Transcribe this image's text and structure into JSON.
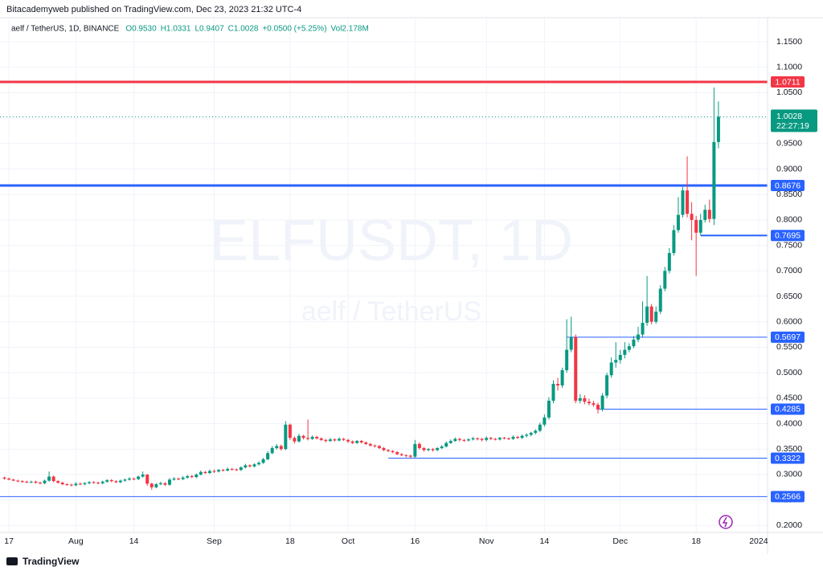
{
  "publisher": "Bitacademyweb published on TradingView.com, Dec 23, 2023 21:32 UTC-4",
  "footer": "TradingView",
  "chart_data": {
    "type": "candlestick",
    "symbol": "aelf / TetherUS, 1D, BINANCE",
    "legend_items": [
      "O0.9530",
      "H1.0331",
      "L0.9407",
      "C1.0028",
      "+0.0500 (+5.25%)",
      "Vol2.178M"
    ],
    "watermark": "ELFUSDT, 1D",
    "watermark_subtitle": "aelf / TetherUS",
    "up_color": "#089981",
    "down_color": "#f23645",
    "grid": true,
    "x": [
      "2023-07-16",
      "2023-07-17",
      "2023-07-18",
      "2023-07-19",
      "2023-07-20",
      "2023-07-21",
      "2023-07-22",
      "2023-07-23",
      "2023-07-24",
      "2023-07-25",
      "2023-07-26",
      "2023-07-27",
      "2023-07-28",
      "2023-07-29",
      "2023-07-30",
      "2023-07-31",
      "2023-08-01",
      "2023-08-02",
      "2023-08-03",
      "2023-08-04",
      "2023-08-05",
      "2023-08-06",
      "2023-08-07",
      "2023-08-08",
      "2023-08-09",
      "2023-08-10",
      "2023-08-11",
      "2023-08-12",
      "2023-08-13",
      "2023-08-14",
      "2023-08-15",
      "2023-08-16",
      "2023-08-17",
      "2023-08-18",
      "2023-08-19",
      "2023-08-20",
      "2023-08-21",
      "2023-08-22",
      "2023-08-23",
      "2023-08-24",
      "2023-08-25",
      "2023-08-26",
      "2023-08-27",
      "2023-08-28",
      "2023-08-29",
      "2023-08-30",
      "2023-08-31",
      "2023-09-01",
      "2023-09-02",
      "2023-09-03",
      "2023-09-04",
      "2023-09-05",
      "2023-09-06",
      "2023-09-07",
      "2023-09-08",
      "2023-09-09",
      "2023-09-10",
      "2023-09-11",
      "2023-09-12",
      "2023-09-13",
      "2023-09-14",
      "2023-09-15",
      "2023-09-16",
      "2023-09-17",
      "2023-09-18",
      "2023-09-19",
      "2023-09-20",
      "2023-09-21",
      "2023-09-22",
      "2023-09-23",
      "2023-09-24",
      "2023-09-25",
      "2023-09-26",
      "2023-09-27",
      "2023-09-28",
      "2023-09-29",
      "2023-09-30",
      "2023-10-01",
      "2023-10-02",
      "2023-10-03",
      "2023-10-04",
      "2023-10-05",
      "2023-10-06",
      "2023-10-07",
      "2023-10-08",
      "2023-10-09",
      "2023-10-10",
      "2023-10-11",
      "2023-10-12",
      "2023-10-13",
      "2023-10-14",
      "2023-10-15",
      "2023-10-16",
      "2023-10-17",
      "2023-10-18",
      "2023-10-19",
      "2023-10-20",
      "2023-10-21",
      "2023-10-22",
      "2023-10-23",
      "2023-10-24",
      "2023-10-25",
      "2023-10-26",
      "2023-10-27",
      "2023-10-28",
      "2023-10-29",
      "2023-10-30",
      "2023-10-31",
      "2023-11-01",
      "2023-11-02",
      "2023-11-03",
      "2023-11-04",
      "2023-11-05",
      "2023-11-06",
      "2023-11-07",
      "2023-11-08",
      "2023-11-09",
      "2023-11-10",
      "2023-11-11",
      "2023-11-12",
      "2023-11-13",
      "2023-11-14",
      "2023-11-15",
      "2023-11-16",
      "2023-11-17",
      "2023-11-18",
      "2023-11-19",
      "2023-11-20",
      "2023-11-21",
      "2023-11-22",
      "2023-11-23",
      "2023-11-24",
      "2023-11-25",
      "2023-11-26",
      "2023-11-27",
      "2023-11-28",
      "2023-11-29",
      "2023-11-30",
      "2023-12-01",
      "2023-12-02",
      "2023-12-03",
      "2023-12-04",
      "2023-12-05",
      "2023-12-06",
      "2023-12-07",
      "2023-12-08",
      "2023-12-09",
      "2023-12-10",
      "2023-12-11",
      "2023-12-12",
      "2023-12-13",
      "2023-12-14",
      "2023-12-15",
      "2023-12-16",
      "2023-12-17",
      "2023-12-18",
      "2023-12-19",
      "2023-12-20",
      "2023-12-21",
      "2023-12-22",
      "2023-12-23"
    ],
    "open": [
      0.294,
      0.292,
      0.29,
      0.288,
      0.287,
      0.286,
      0.285,
      0.286,
      0.284,
      0.283,
      0.288,
      0.296,
      0.287,
      0.284,
      0.281,
      0.28,
      0.279,
      0.282,
      0.281,
      0.283,
      0.285,
      0.284,
      0.283,
      0.286,
      0.289,
      0.287,
      0.285,
      0.288,
      0.29,
      0.292,
      0.291,
      0.296,
      0.3,
      0.282,
      0.275,
      0.281,
      0.283,
      0.28,
      0.29,
      0.292,
      0.291,
      0.294,
      0.297,
      0.295,
      0.3,
      0.305,
      0.303,
      0.307,
      0.306,
      0.309,
      0.308,
      0.311,
      0.31,
      0.309,
      0.314,
      0.318,
      0.316,
      0.32,
      0.323,
      0.33,
      0.342,
      0.352,
      0.356,
      0.35,
      0.398,
      0.372,
      0.365,
      0.376,
      0.372,
      0.37,
      0.374,
      0.371,
      0.368,
      0.366,
      0.369,
      0.367,
      0.37,
      0.368,
      0.365,
      0.362,
      0.366,
      0.363,
      0.36,
      0.357,
      0.356,
      0.352,
      0.348,
      0.346,
      0.344,
      0.34,
      0.338,
      0.337,
      0.335,
      0.36,
      0.352,
      0.348,
      0.35,
      0.348,
      0.352,
      0.355,
      0.362,
      0.366,
      0.37,
      0.368,
      0.367,
      0.369,
      0.371,
      0.37,
      0.368,
      0.372,
      0.37,
      0.369,
      0.372,
      0.371,
      0.37,
      0.374,
      0.372,
      0.376,
      0.378,
      0.382,
      0.386,
      0.398,
      0.412,
      0.445,
      0.478,
      0.475,
      0.505,
      0.545,
      0.57,
      0.445,
      0.45,
      0.443,
      0.44,
      0.437,
      0.428,
      0.455,
      0.495,
      0.52,
      0.525,
      0.535,
      0.545,
      0.552,
      0.565,
      0.575,
      0.598,
      0.63,
      0.6,
      0.62,
      0.665,
      0.7,
      0.735,
      0.78,
      0.81,
      0.858,
      0.812,
      0.8,
      0.775,
      0.8,
      0.82,
      0.802,
      0.953
    ],
    "high": [
      0.296,
      0.294,
      0.292,
      0.29,
      0.289,
      0.288,
      0.288,
      0.288,
      0.286,
      0.29,
      0.306,
      0.298,
      0.289,
      0.286,
      0.283,
      0.282,
      0.285,
      0.284,
      0.285,
      0.287,
      0.287,
      0.286,
      0.288,
      0.291,
      0.291,
      0.289,
      0.29,
      0.292,
      0.295,
      0.294,
      0.298,
      0.306,
      0.301,
      0.284,
      0.283,
      0.286,
      0.285,
      0.293,
      0.295,
      0.294,
      0.297,
      0.299,
      0.299,
      0.302,
      0.308,
      0.307,
      0.31,
      0.31,
      0.311,
      0.311,
      0.314,
      0.313,
      0.312,
      0.316,
      0.321,
      0.32,
      0.322,
      0.326,
      0.333,
      0.346,
      0.356,
      0.36,
      0.359,
      0.405,
      0.4,
      0.375,
      0.38,
      0.378,
      0.408,
      0.377,
      0.376,
      0.373,
      0.37,
      0.372,
      0.371,
      0.373,
      0.372,
      0.37,
      0.367,
      0.368,
      0.368,
      0.365,
      0.362,
      0.359,
      0.358,
      0.354,
      0.35,
      0.348,
      0.346,
      0.342,
      0.34,
      0.339,
      0.368,
      0.363,
      0.354,
      0.352,
      0.352,
      0.354,
      0.358,
      0.365,
      0.369,
      0.373,
      0.372,
      0.37,
      0.371,
      0.374,
      0.373,
      0.372,
      0.375,
      0.374,
      0.372,
      0.374,
      0.374,
      0.373,
      0.377,
      0.376,
      0.379,
      0.381,
      0.384,
      0.389,
      0.402,
      0.418,
      0.452,
      0.485,
      0.49,
      0.51,
      0.605,
      0.61,
      0.575,
      0.458,
      0.456,
      0.449,
      0.445,
      0.441,
      0.46,
      0.5,
      0.53,
      0.56,
      0.545,
      0.56,
      0.558,
      0.572,
      0.59,
      0.64,
      0.69,
      0.635,
      0.63,
      0.672,
      0.708,
      0.745,
      0.79,
      0.845,
      0.865,
      0.925,
      0.835,
      0.808,
      0.812,
      0.83,
      0.84,
      1.06,
      1.0331
    ],
    "low": [
      0.29,
      0.289,
      0.287,
      0.285,
      0.284,
      0.283,
      0.283,
      0.282,
      0.281,
      0.281,
      0.286,
      0.285,
      0.282,
      0.279,
      0.278,
      0.277,
      0.277,
      0.279,
      0.279,
      0.281,
      0.282,
      0.281,
      0.281,
      0.284,
      0.285,
      0.283,
      0.283,
      0.286,
      0.288,
      0.289,
      0.289,
      0.294,
      0.278,
      0.27,
      0.273,
      0.279,
      0.278,
      0.278,
      0.288,
      0.289,
      0.289,
      0.292,
      0.293,
      0.293,
      0.298,
      0.301,
      0.301,
      0.303,
      0.304,
      0.306,
      0.306,
      0.308,
      0.307,
      0.307,
      0.312,
      0.314,
      0.314,
      0.318,
      0.321,
      0.328,
      0.34,
      0.349,
      0.347,
      0.348,
      0.368,
      0.361,
      0.363,
      0.369,
      0.367,
      0.368,
      0.369,
      0.366,
      0.363,
      0.364,
      0.365,
      0.365,
      0.366,
      0.362,
      0.36,
      0.36,
      0.361,
      0.358,
      0.355,
      0.353,
      0.35,
      0.346,
      0.344,
      0.342,
      0.338,
      0.336,
      0.334,
      0.332,
      0.333,
      0.349,
      0.345,
      0.346,
      0.345,
      0.346,
      0.35,
      0.353,
      0.36,
      0.364,
      0.365,
      0.364,
      0.365,
      0.367,
      0.367,
      0.365,
      0.365,
      0.368,
      0.367,
      0.367,
      0.369,
      0.368,
      0.368,
      0.37,
      0.37,
      0.373,
      0.375,
      0.379,
      0.383,
      0.394,
      0.408,
      0.44,
      0.465,
      0.47,
      0.5,
      0.54,
      0.44,
      0.44,
      0.438,
      0.436,
      0.433,
      0.42,
      0.424,
      0.45,
      0.49,
      0.51,
      0.518,
      0.528,
      0.54,
      0.548,
      0.56,
      0.57,
      0.592,
      0.595,
      0.596,
      0.615,
      0.66,
      0.695,
      0.73,
      0.775,
      0.805,
      0.805,
      0.76,
      0.69,
      0.77,
      0.795,
      0.795,
      0.79,
      0.9407
    ],
    "close": [
      0.292,
      0.29,
      0.288,
      0.287,
      0.286,
      0.285,
      0.286,
      0.284,
      0.283,
      0.288,
      0.296,
      0.287,
      0.284,
      0.281,
      0.28,
      0.279,
      0.282,
      0.281,
      0.283,
      0.285,
      0.284,
      0.283,
      0.286,
      0.289,
      0.287,
      0.285,
      0.288,
      0.29,
      0.292,
      0.291,
      0.296,
      0.3,
      0.282,
      0.275,
      0.281,
      0.283,
      0.28,
      0.29,
      0.292,
      0.291,
      0.294,
      0.297,
      0.295,
      0.3,
      0.305,
      0.303,
      0.307,
      0.306,
      0.309,
      0.308,
      0.311,
      0.31,
      0.309,
      0.314,
      0.318,
      0.316,
      0.32,
      0.323,
      0.33,
      0.342,
      0.352,
      0.356,
      0.35,
      0.398,
      0.372,
      0.365,
      0.376,
      0.372,
      0.37,
      0.374,
      0.371,
      0.368,
      0.366,
      0.369,
      0.367,
      0.37,
      0.368,
      0.365,
      0.362,
      0.366,
      0.363,
      0.36,
      0.357,
      0.356,
      0.352,
      0.348,
      0.346,
      0.344,
      0.34,
      0.338,
      0.337,
      0.335,
      0.36,
      0.352,
      0.348,
      0.35,
      0.348,
      0.352,
      0.355,
      0.362,
      0.366,
      0.37,
      0.368,
      0.367,
      0.369,
      0.371,
      0.37,
      0.368,
      0.372,
      0.37,
      0.369,
      0.372,
      0.371,
      0.37,
      0.374,
      0.372,
      0.376,
      0.378,
      0.382,
      0.386,
      0.398,
      0.412,
      0.445,
      0.478,
      0.475,
      0.505,
      0.545,
      0.57,
      0.445,
      0.45,
      0.443,
      0.44,
      0.437,
      0.428,
      0.455,
      0.495,
      0.52,
      0.525,
      0.535,
      0.545,
      0.552,
      0.565,
      0.575,
      0.598,
      0.63,
      0.6,
      0.62,
      0.665,
      0.7,
      0.735,
      0.78,
      0.81,
      0.858,
      0.812,
      0.8,
      0.775,
      0.8,
      0.82,
      0.802,
      0.953,
      1.0028
    ],
    "last_price": 1.0028,
    "countdown": "22:27:19",
    "levels": [
      {
        "value": 1.0711,
        "color": "#f23645",
        "width": 3
      },
      {
        "value": 0.8676,
        "color": "#2962ff",
        "width": 3
      },
      {
        "value": 0.7695,
        "color": "#2962ff",
        "width": 2,
        "start": "2023-12-19"
      },
      {
        "value": 0.5697,
        "color": "#2962ff",
        "width": 1,
        "start": "2023-11-19"
      },
      {
        "value": 0.4285,
        "color": "#2962ff",
        "width": 1,
        "start": "2023-11-26"
      },
      {
        "value": 0.3322,
        "color": "#2962ff",
        "width": 1,
        "start": "2023-10-10"
      },
      {
        "value": 0.2566,
        "color": "#2962ff",
        "width": 1
      }
    ],
    "xlim": [
      "2023-07-15",
      "2024-01-03"
    ],
    "xticks": [
      {
        "value": "2023-07-17",
        "label": "17"
      },
      {
        "value": "2023-08-01",
        "label": "Aug"
      },
      {
        "value": "2023-08-14",
        "label": "14"
      },
      {
        "value": "2023-09-01",
        "label": "Sep"
      },
      {
        "value": "2023-09-18",
        "label": "18"
      },
      {
        "value": "2023-10-01",
        "label": "Oct"
      },
      {
        "value": "2023-10-16",
        "label": "16"
      },
      {
        "value": "2023-11-01",
        "label": "Nov"
      },
      {
        "value": "2023-11-14",
        "label": "14"
      },
      {
        "value": "2023-12-01",
        "label": "Dec"
      },
      {
        "value": "2023-12-18",
        "label": "18"
      },
      {
        "value": "2024-01-01",
        "label": "2024"
      }
    ],
    "ylim": [
      0.1863,
      1.1973
    ],
    "yticks": [
      {
        "value": 0.2,
        "label": "0.2000"
      },
      {
        "value": 0.25,
        "label": "0.2500"
      },
      {
        "value": 0.3,
        "label": "0.3000"
      },
      {
        "value": 0.35,
        "label": "0.3500"
      },
      {
        "value": 0.4,
        "label": "0.4000"
      },
      {
        "value": 0.45,
        "label": "0.4500"
      },
      {
        "value": 0.5,
        "label": "0.5000"
      },
      {
        "value": 0.55,
        "label": "0.5500"
      },
      {
        "value": 0.6,
        "label": "0.6000"
      },
      {
        "value": 0.65,
        "label": "0.6500"
      },
      {
        "value": 0.7,
        "label": "0.7000"
      },
      {
        "value": 0.75,
        "label": "0.7500"
      },
      {
        "value": 0.8,
        "label": "0.8000"
      },
      {
        "value": 0.85,
        "label": "0.8500"
      },
      {
        "value": 0.9,
        "label": "0.9000"
      },
      {
        "value": 0.95,
        "label": "0.9500"
      },
      {
        "value": 1.0,
        "label": "1.0000"
      },
      {
        "value": 1.05,
        "label": "1.0500"
      },
      {
        "value": 1.1,
        "label": "1.1000"
      },
      {
        "value": 1.15,
        "label": "1.1500"
      }
    ]
  }
}
